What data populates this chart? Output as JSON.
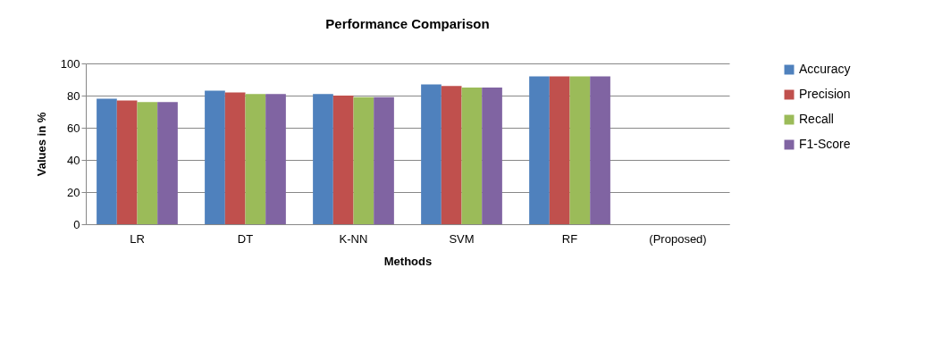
{
  "chart_data": {
    "type": "bar",
    "title": "Performance Comparison",
    "xlabel": "Methods",
    "ylabel": "Values in %",
    "categories": [
      "LR",
      "DT",
      "K-NN",
      "SVM",
      "RF",
      "(Proposed)"
    ],
    "series": [
      {
        "name": "Accuracy",
        "color": "#4f81bd",
        "values": [
          78,
          83,
          81,
          87,
          92,
          null
        ]
      },
      {
        "name": "Precision",
        "color": "#c0504d",
        "values": [
          77,
          82,
          80,
          86,
          92,
          null
        ]
      },
      {
        "name": "Recall",
        "color": "#9bbb59",
        "values": [
          76,
          81,
          79,
          85,
          92,
          null
        ]
      },
      {
        "name": "F1-Score",
        "color": "#8064a2",
        "values": [
          76,
          81,
          79,
          85,
          92,
          null
        ]
      }
    ],
    "ylim": [
      0,
      100
    ],
    "yticks": [
      0,
      20,
      40,
      60,
      80,
      100
    ],
    "grid": "y",
    "legend": "right"
  }
}
